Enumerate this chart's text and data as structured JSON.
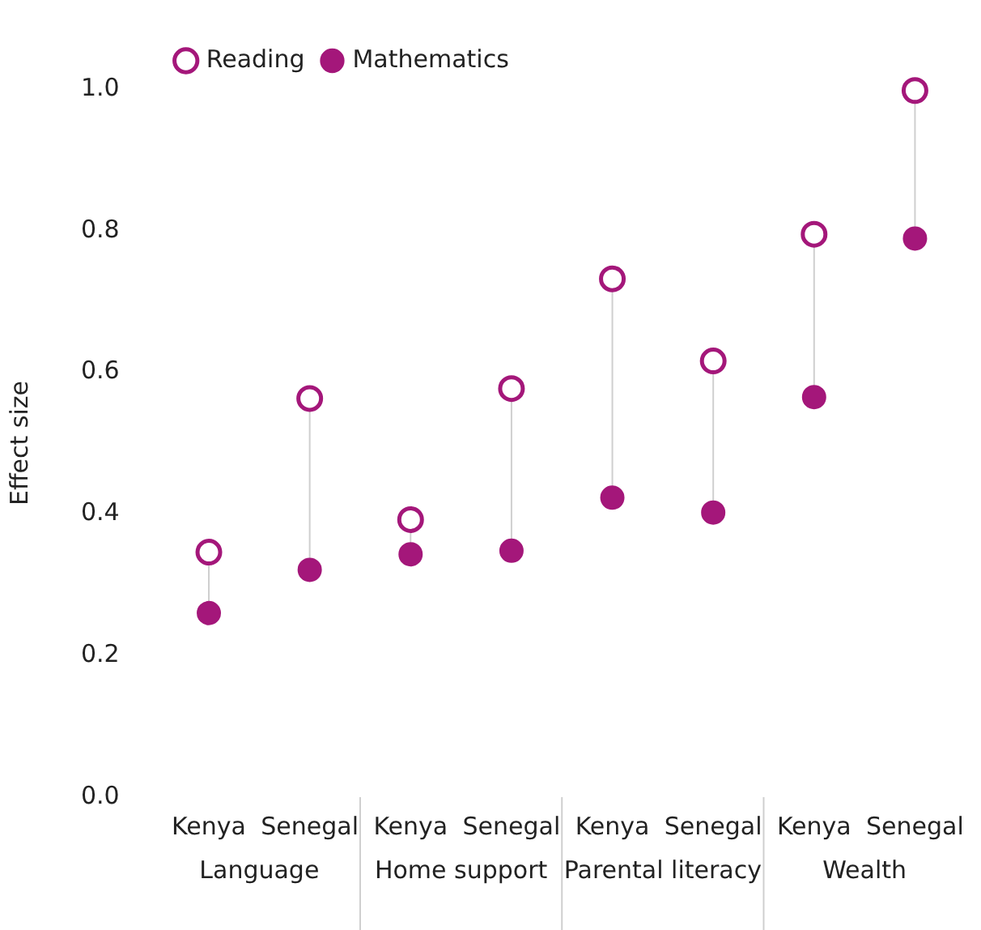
{
  "chart_data": {
    "type": "scatter",
    "ylabel": "Effect size",
    "categories": [
      "Kenya",
      "Senegal",
      "Kenya",
      "Senegal",
      "Kenya",
      "Senegal",
      "Kenya",
      "Senegal"
    ],
    "annotations": [
      "Language",
      "Home support",
      "Parental literacy",
      "Wealth"
    ],
    "series": [
      {
        "name": "Reading",
        "color": "#a4177a",
        "values": [
          0.346,
          0.563,
          0.392,
          0.577,
          0.732,
          0.616,
          0.795,
          0.998
        ]
      },
      {
        "name": "Mathematics",
        "color": "#a4177a",
        "values": [
          0.26,
          0.321,
          0.343,
          0.348,
          0.423,
          0.402,
          0.565,
          0.789
        ]
      }
    ],
    "ylim": [
      0,
      1
    ],
    "yticks": [
      {
        "value": 0,
        "label": "0.0"
      },
      0.2,
      0.4,
      0.6,
      0.8,
      {
        "value": 1,
        "label": "1.0"
      }
    ],
    "grid": false,
    "legend": "top left",
    "marker": "circle"
  }
}
